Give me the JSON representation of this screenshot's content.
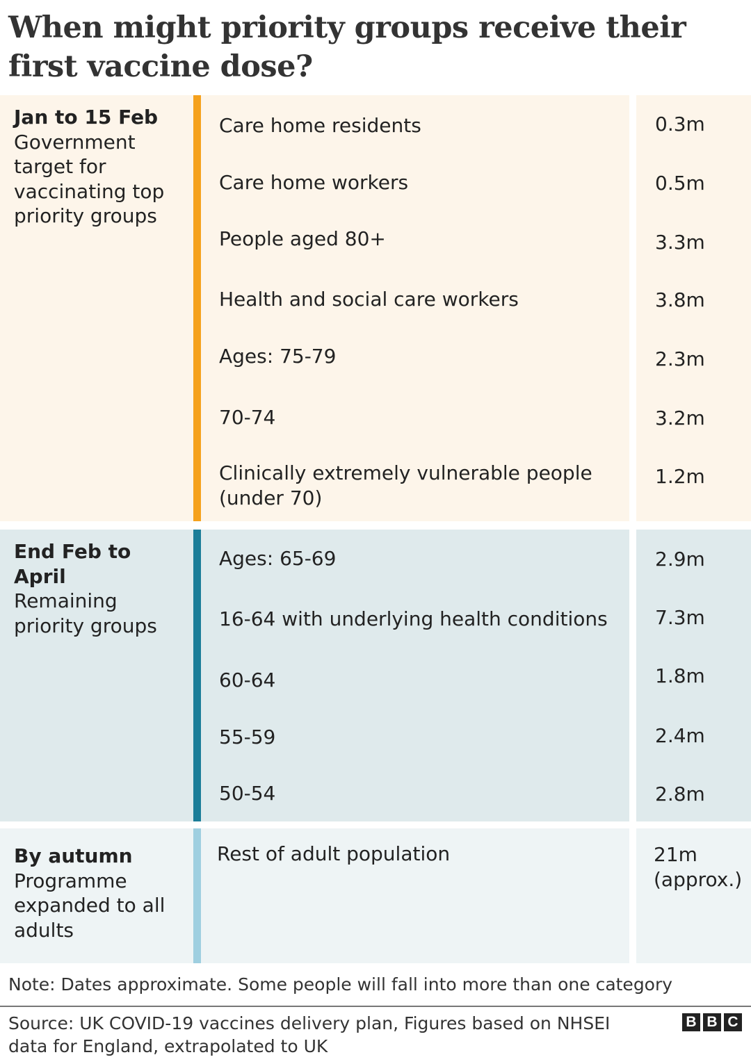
{
  "title": "When might priority groups receive their first vaccine dose?",
  "colors": {
    "phase1_bg": "#fdf5ea",
    "phase1_bar": "#f5a11c",
    "phase2_bg": "#dfeaec",
    "phase2_bar": "#1b7d98",
    "phase3_bg": "#eef4f5",
    "phase3_bar": "#9fcfe0"
  },
  "chart_data": {
    "type": "table",
    "title": "When might priority groups receive their first vaccine dose?",
    "phases": [
      {
        "period": "Jan to 15 Feb",
        "description": "Government target for vaccinating top priority groups",
        "groups": [
          {
            "name": "Care home residents",
            "value": "0.3m"
          },
          {
            "name": "Care home workers",
            "value": "0.5m"
          },
          {
            "name": "People aged 80+",
            "value": "3.3m"
          },
          {
            "name": "Health and social care workers",
            "value": "3.8m"
          },
          {
            "name": "Ages: 75-79",
            "value": "2.3m"
          },
          {
            "name": "70-74",
            "value": "3.2m"
          },
          {
            "name": "Clinically extremely vulnerable people (under 70)",
            "value": "1.2m"
          }
        ]
      },
      {
        "period": "End Feb to April",
        "description": "Remaining priority groups",
        "groups": [
          {
            "name": "Ages: 65-69",
            "value": "2.9m"
          },
          {
            "name": "16-64 with underlying health conditions",
            "value": "7.3m"
          },
          {
            "name": "60-64",
            "value": "1.8m"
          },
          {
            "name": "55-59",
            "value": "2.4m"
          },
          {
            "name": "50-54",
            "value": "2.8m"
          }
        ]
      },
      {
        "period": "By autumn",
        "description": "Programme expanded to all adults",
        "groups": [
          {
            "name": "Rest of adult population",
            "value": "21m (approx.)"
          }
        ]
      }
    ]
  },
  "note": "Note: Dates approximate. Some people will fall into more than one category",
  "source": "Source: UK COVID-19 vaccines delivery plan, Figures based on NHSEI data for England, extrapolated to UK",
  "logo": "BBC"
}
